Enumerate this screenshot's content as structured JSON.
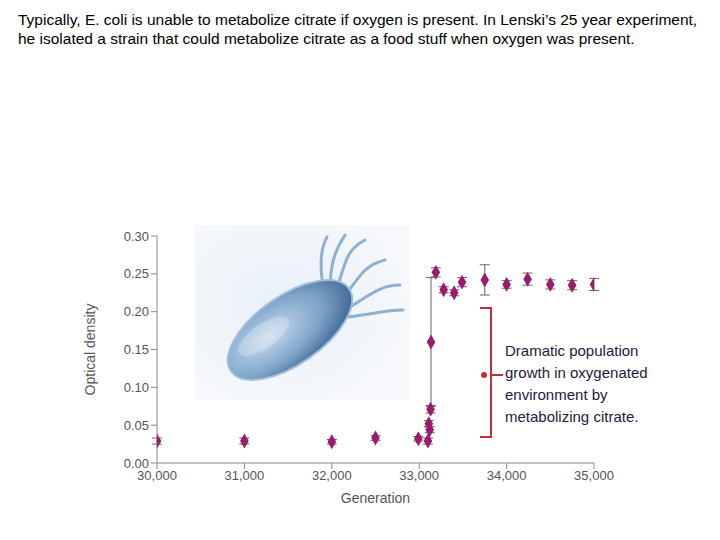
{
  "chart_data": {
    "type": "scatter",
    "title": "Typically, E. coli is unable to metabolize citrate if oxygen is present.  In Lenski’s 25 year experiment, he isolated a strain that could metabolize citrate as a food stuff when oxygen was present.",
    "x_label": "Generation",
    "y_label": "Optical density",
    "annotation": "Dramatic population growth in oxygenated environment by metabolizing citrate.",
    "x": [
      30000,
      31000,
      32000,
      32500,
      32990,
      33100,
      33120,
      33110,
      33130,
      33135,
      33190,
      33280,
      33400,
      33490,
      33750,
      34000,
      34240,
      34500,
      34750,
      35000
    ],
    "values": [
      0.029,
      0.029,
      0.028,
      0.033,
      0.032,
      0.029,
      0.044,
      0.052,
      0.071,
      0.16,
      0.252,
      0.229,
      0.225,
      0.239,
      0.242,
      0.236,
      0.243,
      0.236,
      0.235,
      0.236
    ],
    "errors": [
      0.004,
      0.004,
      0.003,
      0.003,
      0.003,
      0.004,
      0.004,
      0.004,
      0.005,
      0.085,
      0.006,
      0.004,
      0.004,
      0.006,
      0.02,
      0.005,
      0.008,
      0.006,
      0.006,
      0.008
    ],
    "color": "#9b1c6e",
    "marker": "diamond",
    "xlim": [
      30000,
      35000
    ],
    "xticks": [
      {
        "value": 30000,
        "label": "30,000"
      },
      {
        "value": 31000,
        "label": "31,000"
      },
      {
        "value": 32000,
        "label": "32,000"
      },
      {
        "value": 33000,
        "label": "33,000"
      },
      {
        "value": 34000,
        "label": "34,000"
      },
      {
        "value": 35000,
        "label": "35,000"
      }
    ],
    "ylim": [
      0,
      0.3
    ],
    "yticks": [
      {
        "value": 0,
        "label": "0.00"
      },
      {
        "value": 0.05,
        "label": "0.05"
      },
      {
        "value": 0.1,
        "label": "0.10"
      },
      {
        "value": 0.15,
        "label": "0.15"
      },
      {
        "value": 0.2,
        "label": "0.20"
      },
      {
        "value": 0.25,
        "label": "0.25"
      },
      {
        "value": 0.3,
        "label": "0.30"
      }
    ],
    "grid": false
  }
}
